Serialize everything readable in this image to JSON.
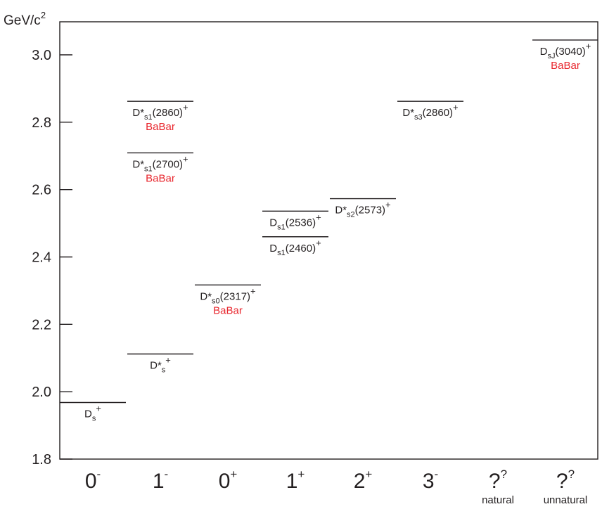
{
  "chart_data": {
    "type": "level-diagram",
    "ylabel": "GeV/c",
    "ylabel_sup": "2",
    "ylim": [
      1.8,
      3.15
    ],
    "yticks": [
      {
        "value": 1.8,
        "label": "1.8"
      },
      {
        "value": 2.0,
        "label": "2.0"
      },
      {
        "value": 2.2,
        "label": "2.2"
      },
      {
        "value": 2.4,
        "label": "2.4"
      },
      {
        "value": 2.6,
        "label": "2.6"
      },
      {
        "value": 2.8,
        "label": "2.8"
      },
      {
        "value": 3.0,
        "label": "3.0"
      }
    ],
    "columns": [
      {
        "base": "0",
        "sup": "-",
        "note": ""
      },
      {
        "base": "1",
        "sup": "-",
        "note": ""
      },
      {
        "base": "0",
        "sup": "+",
        "note": ""
      },
      {
        "base": "1",
        "sup": "+",
        "note": ""
      },
      {
        "base": "2",
        "sup": "+",
        "note": ""
      },
      {
        "base": "3",
        "sup": "-",
        "note": ""
      },
      {
        "base": "?",
        "sup": "?",
        "note": "natural"
      },
      {
        "base": "?",
        "sup": "?",
        "note": "unnatural"
      }
    ],
    "accent_color": "#e8262d",
    "line_color": "#231f20",
    "states": [
      {
        "column": 0,
        "mass": 1.968,
        "label": {
          "base": "D",
          "sub": "s",
          "paren": "",
          "sup": "+"
        },
        "babar": "",
        "placement": "below"
      },
      {
        "column": 1,
        "mass": 2.112,
        "label": {
          "base": "D*",
          "sub": "s",
          "paren": "",
          "sup": "+"
        },
        "babar": "",
        "placement": "below"
      },
      {
        "column": 2,
        "mass": 2.317,
        "label": {
          "base": "D*",
          "sub": "s0",
          "paren": "(2317)",
          "sup": "+"
        },
        "babar": "BaBar",
        "placement": "below"
      },
      {
        "column": 3,
        "mass": 2.46,
        "label": {
          "base": "D",
          "sub": "s1",
          "paren": "(2460)",
          "sup": "+"
        },
        "babar": "",
        "placement": "below"
      },
      {
        "column": 3,
        "mass": 2.536,
        "label": {
          "base": "D",
          "sub": "s1",
          "paren": "(2536)",
          "sup": "+"
        },
        "babar": "",
        "placement": "below"
      },
      {
        "column": 4,
        "mass": 2.573,
        "label": {
          "base": "D*",
          "sub": "s2",
          "paren": "(2573)",
          "sup": "+"
        },
        "babar": "",
        "placement": "below"
      },
      {
        "column": 1,
        "mass": 2.709,
        "label": {
          "base": "D*",
          "sub": "s1",
          "paren": "(2700)",
          "sup": "+"
        },
        "babar": "BaBar",
        "placement": "below"
      },
      {
        "column": 1,
        "mass": 2.862,
        "label": {
          "base": "D*",
          "sub": "s1",
          "paren": "(2860)",
          "sup": "+"
        },
        "babar": "BaBar",
        "placement": "below"
      },
      {
        "column": 5,
        "mass": 2.862,
        "label": {
          "base": "D*",
          "sub": "s3",
          "paren": "(2860)",
          "sup": "+"
        },
        "babar": "",
        "placement": "below"
      },
      {
        "column": 7,
        "mass": 3.044,
        "label": {
          "base": "D",
          "sub": "sJ",
          "paren": "(3040)",
          "sup": "+"
        },
        "babar": "BaBar",
        "placement": "below"
      }
    ]
  }
}
